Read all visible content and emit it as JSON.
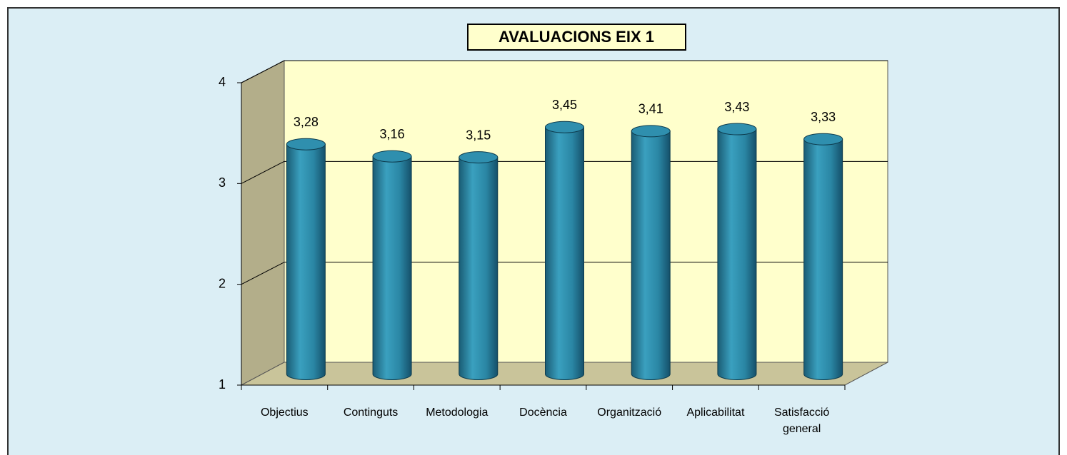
{
  "chart_data": {
    "type": "bar",
    "title": "AVALUACIONS EIX 1",
    "categories": [
      "Objectius",
      "Continguts",
      "Metodologia",
      "Docència",
      "Organització",
      "Aplicabilitat",
      "Satisfacció general"
    ],
    "values": [
      3.28,
      3.16,
      3.15,
      3.45,
      3.41,
      3.43,
      3.33
    ],
    "value_labels": [
      "3,28",
      "3,16",
      "3,15",
      "3,45",
      "3,41",
      "3,43",
      "3,33"
    ],
    "color": "#2a86a4",
    "ylim": [
      1,
      4
    ],
    "yticks": [
      1,
      2,
      3,
      4
    ],
    "grid": true
  }
}
